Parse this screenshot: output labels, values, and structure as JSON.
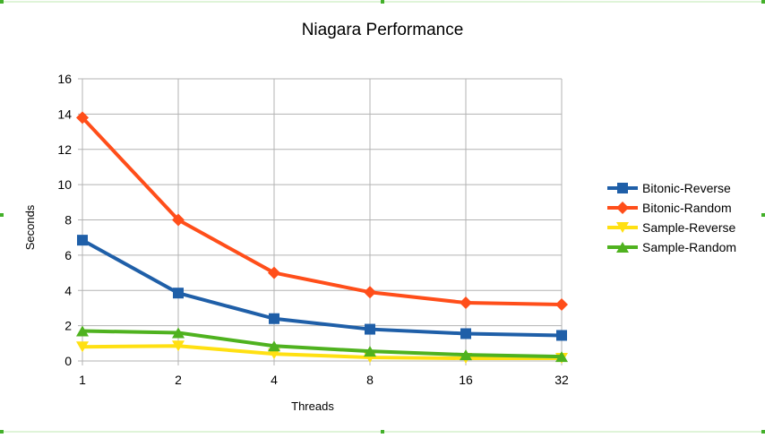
{
  "chart_data": {
    "type": "line",
    "title": "Niagara Performance",
    "xlabel": "Threads",
    "ylabel": "Seconds",
    "categories": [
      "1",
      "2",
      "4",
      "8",
      "16",
      "32"
    ],
    "ylim": [
      0,
      16
    ],
    "yticks": [
      0,
      2,
      4,
      6,
      8,
      10,
      12,
      14,
      16
    ],
    "grid": true,
    "legend": "right",
    "series": [
      {
        "name": "Bitonic-Reverse",
        "color": "#1f5fa8",
        "marker": "square",
        "values": [
          6.85,
          3.85,
          2.4,
          1.8,
          1.55,
          1.45
        ]
      },
      {
        "name": "Bitonic-Random",
        "color": "#ff4e1a",
        "marker": "diamond",
        "values": [
          13.8,
          8.0,
          5.0,
          3.9,
          3.3,
          3.2
        ]
      },
      {
        "name": "Sample-Reverse",
        "color": "#ffe012",
        "marker": "triangle-down",
        "values": [
          0.8,
          0.85,
          0.4,
          0.2,
          0.15,
          0.15
        ]
      },
      {
        "name": "Sample-Random",
        "color": "#4fb21f",
        "marker": "triangle-up",
        "values": [
          1.7,
          1.6,
          0.85,
          0.55,
          0.35,
          0.25
        ]
      }
    ]
  }
}
